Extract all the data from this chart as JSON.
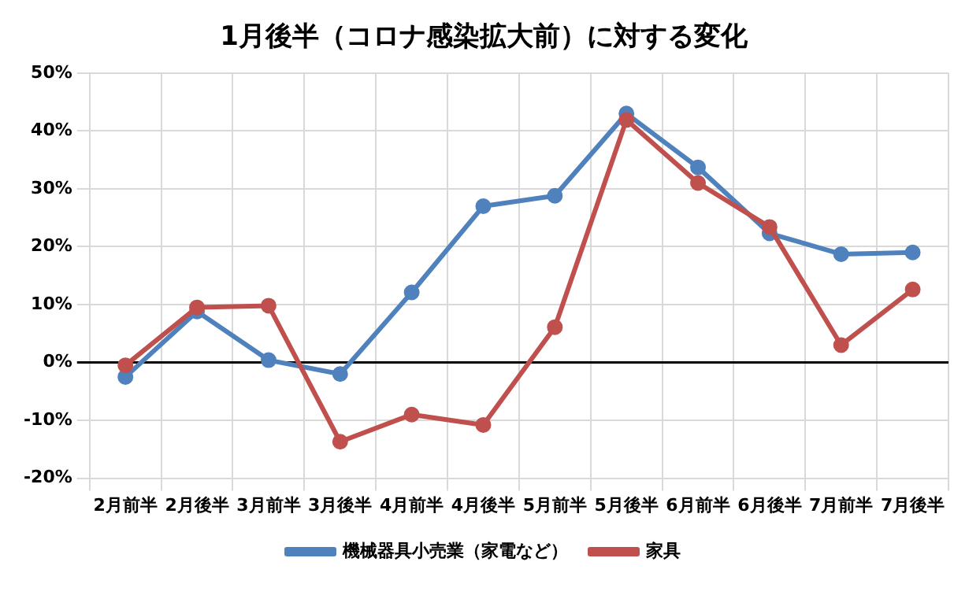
{
  "chart_data": {
    "type": "line",
    "title": "1月後半（コロナ感染拡大前）に対する変化",
    "categories": [
      "2月前半",
      "2月後半",
      "3月前半",
      "3月後半",
      "4月前半",
      "4月後半",
      "5月前半",
      "5月後半",
      "6月前半",
      "6月後半",
      "7月前半",
      "7月後半"
    ],
    "series": [
      {
        "name": "機械器具小売業（家電など）",
        "color": "#4f81bd",
        "values": [
          -2.5,
          8.8,
          0.4,
          -2,
          12.1,
          27,
          28.8,
          43,
          33.7,
          22.3,
          18.7,
          19
        ]
      },
      {
        "name": "家具",
        "color": "#c0504d",
        "values": [
          -0.5,
          9.5,
          9.8,
          -13.7,
          -9,
          -10.8,
          6.1,
          41.9,
          31,
          23.4,
          3,
          12.6
        ]
      }
    ],
    "ylim": [
      -20,
      50
    ],
    "yticks": [
      {
        "value": -20,
        "label": "-20%"
      },
      {
        "value": -10,
        "label": "-10%"
      },
      {
        "value": 0,
        "label": "0%"
      },
      {
        "value": 10,
        "label": "10%"
      },
      {
        "value": 20,
        "label": "20%"
      },
      {
        "value": 30,
        "label": "30%"
      },
      {
        "value": 40,
        "label": "40%"
      },
      {
        "value": 50,
        "label": "50%"
      }
    ],
    "grid": true,
    "legend": "bottom",
    "marker": "circle",
    "line_style": "solid"
  }
}
